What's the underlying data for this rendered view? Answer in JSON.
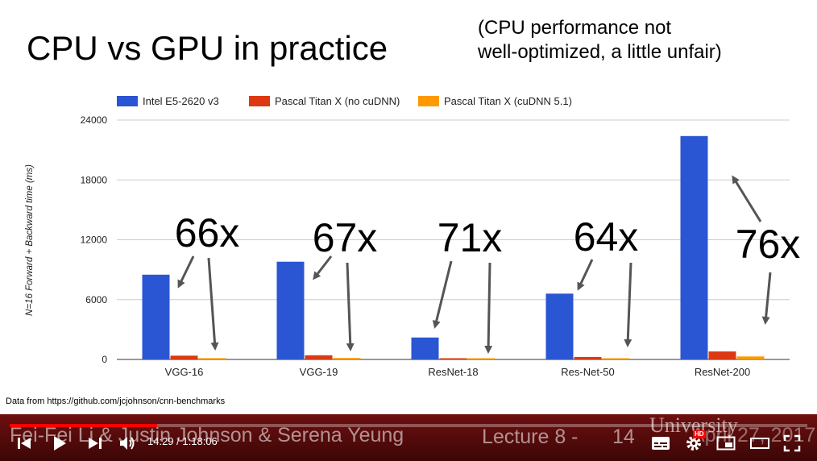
{
  "slide": {
    "title": "CPU vs GPU in practice",
    "note": "(CPU performance not\nwell-optimized, a little unfair)",
    "source": "Data from https://github.com/jcjohnson/cnn-benchmarks",
    "footer_authors": "Fei-Fei Li & Justin Johnson & Serena Yeung",
    "footer_lecture": "Lecture 8 -",
    "footer_page": "14",
    "footer_university": "University",
    "footer_date": "April 27, 2017"
  },
  "chart_data": {
    "type": "bar",
    "ylabel": "N=16 Forward + Backward time (ms)",
    "ylim": [
      0,
      24000
    ],
    "yticks": [
      0,
      6000,
      12000,
      18000,
      24000
    ],
    "categories": [
      "VGG-16",
      "VGG-19",
      "ResNet-18",
      "Res-Net-50",
      "ResNet-200"
    ],
    "series": [
      {
        "name": "Intel E5-2620 v3",
        "color": "#2a56d3",
        "values": [
          8500,
          9800,
          2200,
          6600,
          22400
        ]
      },
      {
        "name": "Pascal Titan X (no cuDNN)",
        "color": "#dc3912",
        "values": [
          380,
          420,
          80,
          250,
          800
        ]
      },
      {
        "name": "Pascal Titan X (cuDNN 5.1)",
        "color": "#ff9900",
        "values": [
          130,
          145,
          30,
          100,
          300
        ]
      }
    ],
    "legend": "top",
    "annotations": [
      "66x",
      "67x",
      "71x",
      "64x",
      "76x"
    ]
  },
  "player": {
    "current_time": "14:29",
    "separator": " / ",
    "duration": "1:18:06",
    "progress": 0.185,
    "hd_badge": "HD",
    "accent": "#ff0000"
  }
}
